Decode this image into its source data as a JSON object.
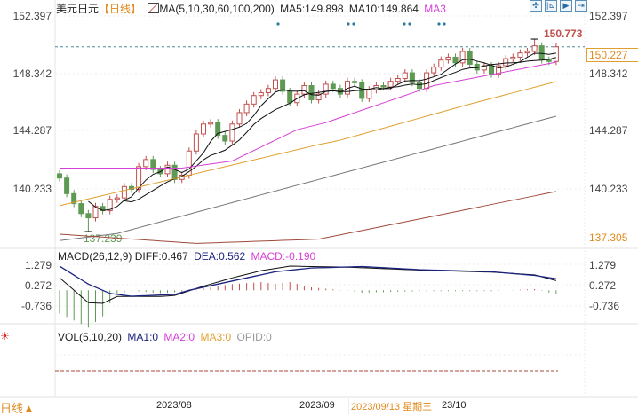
{
  "header": {
    "symbol": "美元日元",
    "period": "【日线】",
    "ma_label": "MA(5,10,30,60,100,200)",
    "ma5": "MA5:149.898",
    "ma10": "MA10:149.864",
    "ma3": "MA3"
  },
  "toolbar": {
    "icons": [
      "crosshair-icon",
      "chart-start-icon",
      "play-icon",
      "exit-icon"
    ]
  },
  "price_axis": {
    "left_ticks": [
      "152.397",
      "148.342",
      "144.287",
      "140.233"
    ],
    "right_ticks": [
      "152.397",
      "148.342",
      "144.287",
      "140.233",
      "137.305"
    ],
    "current_price": "150.227",
    "high_label": "150.773",
    "low_label": "137.239"
  },
  "macd": {
    "title": "MACD(26,12,9)",
    "diff": "DIFF:0.467",
    "dea": "DEA:0.562",
    "macd": "MACD:-0.190",
    "ticks": [
      "1.279",
      "0.272",
      "-0.736"
    ]
  },
  "vol": {
    "title": "VOL(5,10,20)",
    "ma1": "MA1:0",
    "ma2": "MA2:0",
    "ma3": "MA3:0",
    "opid": "OPID:0"
  },
  "time_axis": {
    "labels": [
      "2023/08",
      "2023/09"
    ],
    "cursor_date": "2023/09/13 星期三",
    "clipped_label": "23/10",
    "period_button": "日线▲"
  },
  "colors": {
    "up": "#c0504d",
    "down": "#5f9a55",
    "ma5": "#111111",
    "ma10": "#111111",
    "ma30": "#d63fd6",
    "ma60": "#e0a030",
    "ma100": "#777777",
    "ma200": "#a04a3a",
    "dea": "#1a237e",
    "accent": "#e08a1e"
  },
  "chart_data": {
    "type": "candlestick",
    "price_range": [
      137.305,
      152.397
    ],
    "open": [
      141.3,
      141.0,
      139.9,
      139.2,
      138.5,
      138.2,
      139.0,
      138.7,
      139.5,
      139.6,
      140.4,
      140.2,
      141.8,
      142.3,
      141.6,
      141.3,
      141.9,
      140.9,
      141.2,
      142.9,
      144.1,
      144.8,
      144.9,
      144.0,
      143.6,
      144.8,
      145.6,
      146.2,
      146.8,
      147.0,
      147.3,
      147.9,
      147.1,
      146.3,
      146.9,
      147.5,
      146.5,
      146.9,
      147.6,
      147.3,
      146.9,
      147.8,
      147.7,
      146.6,
      147.2,
      147.5,
      147.4,
      147.8,
      148.0,
      148.4,
      147.7,
      147.3,
      148.4,
      148.8,
      149.3,
      149.5,
      149.1,
      149.9,
      149.0,
      148.6,
      148.9,
      148.3,
      148.9,
      149.4,
      149.5,
      149.8,
      149.9,
      150.3,
      149.3,
      149.2
    ],
    "close": [
      141.0,
      139.9,
      139.2,
      138.5,
      138.2,
      139.0,
      138.7,
      139.5,
      139.6,
      140.4,
      140.2,
      141.8,
      142.3,
      141.6,
      141.3,
      141.9,
      140.9,
      141.2,
      142.9,
      144.1,
      144.8,
      144.9,
      144.0,
      143.6,
      144.8,
      145.6,
      146.2,
      146.8,
      147.0,
      147.3,
      147.9,
      147.1,
      146.3,
      146.9,
      147.5,
      146.5,
      146.9,
      147.6,
      147.3,
      146.9,
      147.8,
      147.7,
      146.6,
      147.2,
      147.5,
      147.4,
      147.8,
      148.0,
      148.4,
      147.7,
      147.3,
      148.4,
      148.8,
      149.3,
      149.5,
      149.1,
      149.9,
      149.0,
      148.6,
      148.9,
      148.3,
      148.9,
      149.4,
      149.5,
      149.8,
      149.9,
      150.3,
      149.3,
      149.2,
      150.227
    ],
    "high_index": 66,
    "high": 150.773,
    "low_index": 4,
    "low": 137.239,
    "ma_lines": {
      "ma30": [
        [
          0,
          141.7
        ],
        [
          17,
          141.7
        ],
        [
          24,
          142.2
        ],
        [
          33,
          144.4
        ],
        [
          37,
          144.9
        ],
        [
          52,
          147.5
        ],
        [
          69,
          149.15
        ]
      ],
      "ma60": [
        [
          0,
          139.05
        ],
        [
          36,
          143.35
        ],
        [
          39,
          143.66
        ],
        [
          57,
          146.2
        ],
        [
          69,
          147.78
        ]
      ],
      "ma100": [
        [
          0,
          136.6
        ],
        [
          8,
          137.1
        ],
        [
          36,
          140.9
        ],
        [
          69,
          145.35
        ]
      ],
      "ma200": [
        [
          0,
          137.05
        ],
        [
          19,
          136.4
        ],
        [
          36,
          136.7
        ],
        [
          69,
          140.05
        ]
      ]
    },
    "macd_range": [
      -1.9,
      1.6
    ],
    "macd_diff": [
      [
        0,
        0.61
      ],
      [
        4,
        -0.6
      ],
      [
        6,
        -0.63
      ],
      [
        8,
        -0.3
      ],
      [
        14,
        -0.3
      ],
      [
        16,
        -0.25
      ],
      [
        20,
        0.2
      ],
      [
        24,
        0.6
      ],
      [
        28,
        0.95
      ],
      [
        32,
        1.17
      ],
      [
        40,
        1.12
      ],
      [
        50,
        0.98
      ],
      [
        60,
        0.88
      ],
      [
        66,
        0.75
      ],
      [
        69,
        0.467
      ]
    ],
    "macd_dea": [
      [
        0,
        1.17
      ],
      [
        4,
        0.3
      ],
      [
        7,
        -0.15
      ],
      [
        10,
        -0.29
      ],
      [
        16,
        -0.2
      ],
      [
        18,
        0
      ],
      [
        24,
        0.45
      ],
      [
        30,
        0.9
      ],
      [
        35,
        1.08
      ],
      [
        42,
        1.15
      ],
      [
        50,
        1.0
      ],
      [
        60,
        0.9
      ],
      [
        66,
        0.72
      ],
      [
        69,
        0.562
      ]
    ]
  }
}
